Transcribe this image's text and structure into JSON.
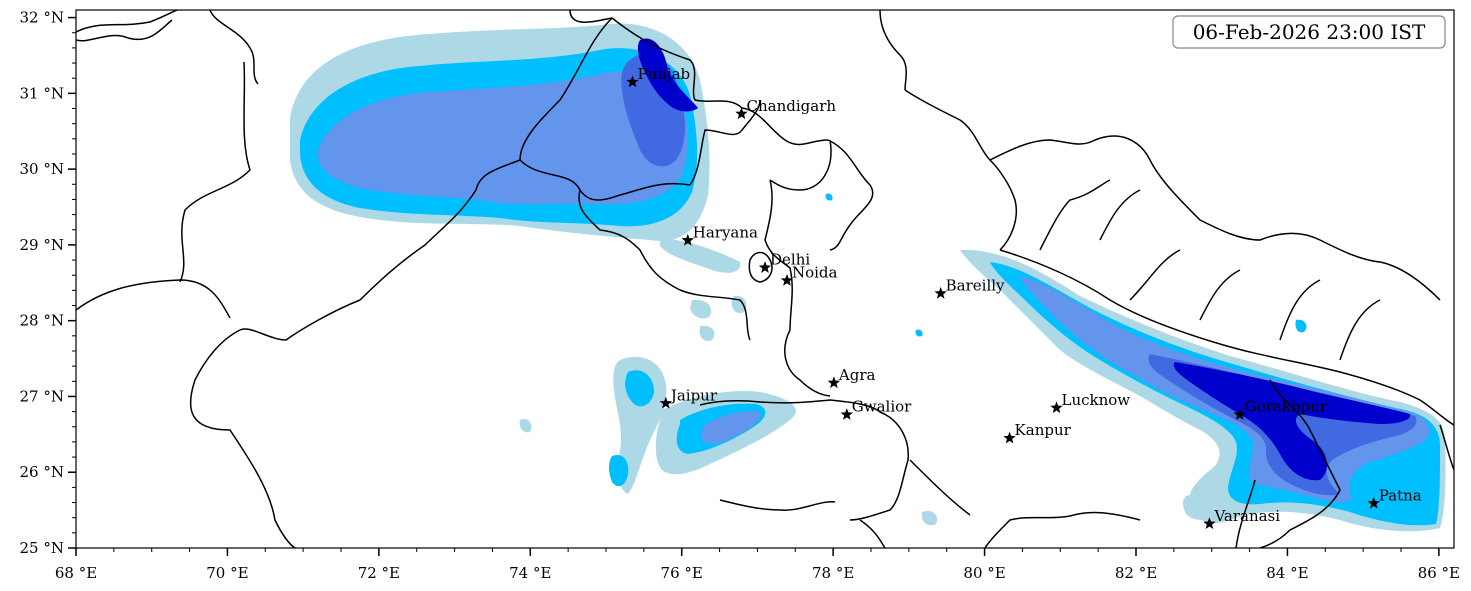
{
  "map": {
    "timestamp": "06-Feb-2026 23:00 IST",
    "lon_range": [
      68,
      86.2
    ],
    "lat_range": [
      25,
      32.1
    ],
    "x_ticks": [
      {
        "value": 68,
        "label": "68 °E"
      },
      {
        "value": 70,
        "label": "70 °E"
      },
      {
        "value": 72,
        "label": "72 °E"
      },
      {
        "value": 74,
        "label": "74 °E"
      },
      {
        "value": 76,
        "label": "76 °E"
      },
      {
        "value": 78,
        "label": "78 °E"
      },
      {
        "value": 80,
        "label": "80 °E"
      },
      {
        "value": 82,
        "label": "82 °E"
      },
      {
        "value": 84,
        "label": "84 °E"
      },
      {
        "value": 86,
        "label": "86 °E"
      }
    ],
    "y_ticks": [
      {
        "value": 25,
        "label": "25 °N"
      },
      {
        "value": 26,
        "label": "26 °N"
      },
      {
        "value": 27,
        "label": "27 °N"
      },
      {
        "value": 28,
        "label": "28 °N"
      },
      {
        "value": 29,
        "label": "29 °N"
      },
      {
        "value": 30,
        "label": "30 °N"
      },
      {
        "value": 31,
        "label": "31 °N"
      },
      {
        "value": 32,
        "label": "32 °N"
      }
    ],
    "cities": [
      {
        "name": "Punjab",
        "lon": 75.35,
        "lat": 31.15
      },
      {
        "name": "Chandigarh",
        "lon": 76.79,
        "lat": 30.73
      },
      {
        "name": "Haryana",
        "lon": 76.08,
        "lat": 29.06
      },
      {
        "name": "Delhi",
        "lon": 77.1,
        "lat": 28.7
      },
      {
        "name": "Noida",
        "lon": 77.39,
        "lat": 28.53
      },
      {
        "name": "Bareilly",
        "lon": 79.42,
        "lat": 28.36
      },
      {
        "name": "Agra",
        "lon": 78.01,
        "lat": 27.18
      },
      {
        "name": "Jaipur",
        "lon": 75.79,
        "lat": 26.91
      },
      {
        "name": "Gwalior",
        "lon": 78.18,
        "lat": 26.76
      },
      {
        "name": "Lucknow",
        "lon": 80.95,
        "lat": 26.85
      },
      {
        "name": "Kanpur",
        "lon": 80.33,
        "lat": 26.45
      },
      {
        "name": "Gorakhpur",
        "lon": 83.37,
        "lat": 26.76
      },
      {
        "name": "Varanasi",
        "lon": 82.97,
        "lat": 25.32
      },
      {
        "name": "Patna",
        "lon": 85.14,
        "lat": 25.59
      }
    ],
    "colors": {
      "level1": "#add8e6",
      "level2": "#00bfff",
      "level3": "#6495ed",
      "level4": "#4169e1",
      "level5": "#0000cd",
      "boundary": "#000000"
    }
  }
}
